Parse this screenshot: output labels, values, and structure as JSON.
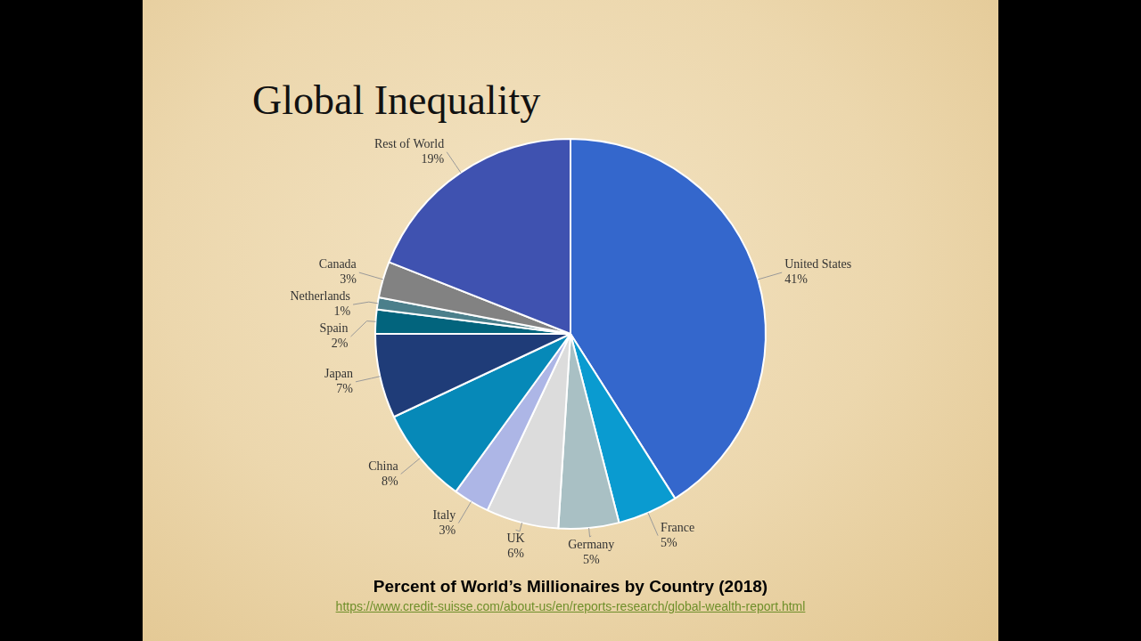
{
  "heading": "Global Inequality",
  "chart_data": {
    "type": "pie",
    "title": "Percent of World’s Millionaires by Country (2018)",
    "source": "https://www.credit-suisse.com/about-us/en/reports-research/global-wealth-report.html",
    "categories": [
      "United States",
      "France",
      "Germany",
      "UK",
      "Italy",
      "China",
      "Japan",
      "Spain",
      "Netherlands",
      "Canada",
      "Rest of World"
    ],
    "values": [
      41,
      5,
      5,
      6,
      3,
      8,
      7,
      2,
      1,
      3,
      19
    ],
    "value_labels": [
      "41%",
      "5%",
      "5%",
      "6%",
      "3%",
      "8%",
      "7%",
      "2%",
      "1%",
      "3%",
      "19%"
    ],
    "colors": [
      "#3467cc",
      "#0a9bd0",
      "#a9c0c4",
      "#dcdcdc",
      "#adb6e6",
      "#0689b8",
      "#1f3c78",
      "#02647d",
      "#4b7f8b",
      "#828282",
      "#3f52b0"
    ],
    "data_labels": true
  }
}
